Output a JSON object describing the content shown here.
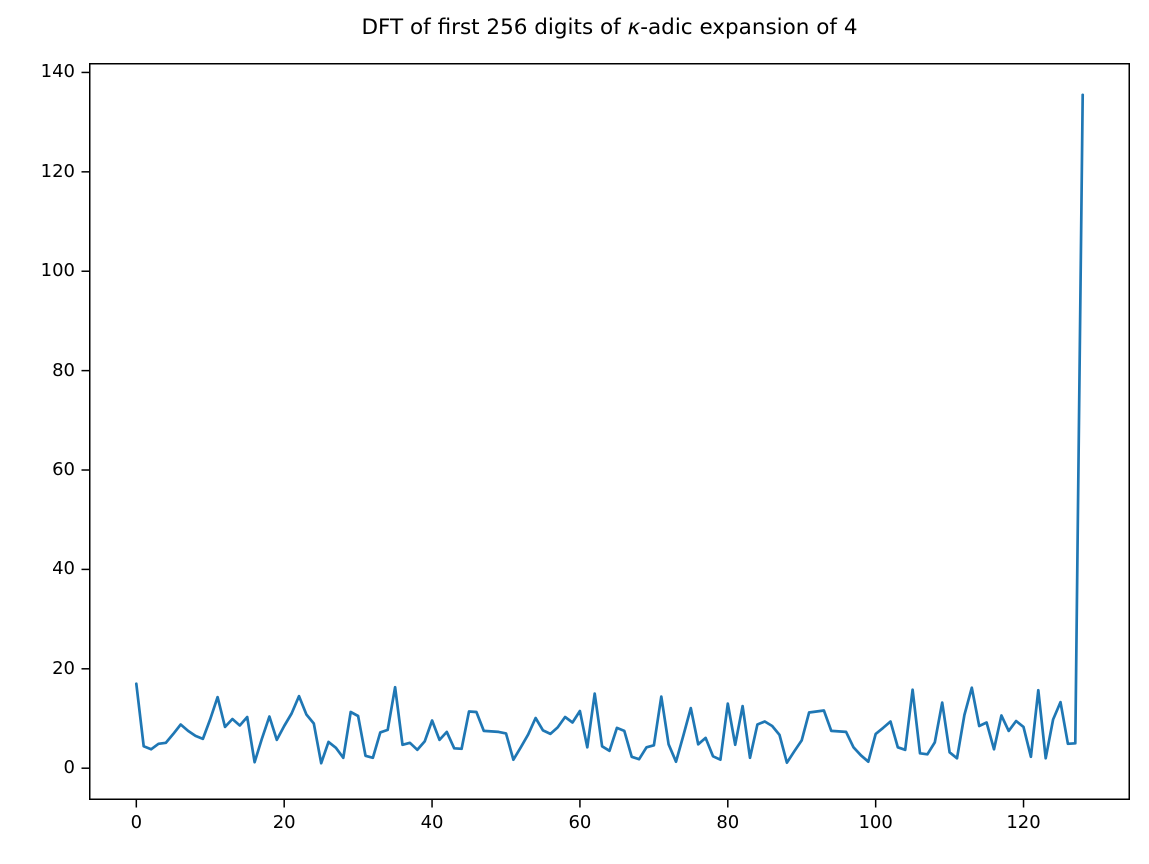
{
  "figure": {
    "title_parts": {
      "prefix": "DFT of first 256 digits of ",
      "kappa": "κ",
      "suffix": "-adic expansion of 4"
    }
  },
  "chart_data": {
    "type": "line",
    "title": "DFT of first 256 digits of κ-adic expansion of 4",
    "xlabel": "",
    "ylabel": "",
    "grid": false,
    "legend": "none",
    "line_color": "#1f77b4",
    "axis_color": "#000000",
    "background_color": "#ffffff",
    "xlim": [
      -6.4,
      134.4
    ],
    "ylim": [
      -6.4,
      141.9
    ],
    "x_ticks": [
      0,
      20,
      40,
      60,
      80,
      100,
      120
    ],
    "y_ticks": [
      0,
      20,
      40,
      60,
      80,
      100,
      120,
      140
    ],
    "x_start": 0,
    "x_step": 1,
    "y": [
      17.0,
      4.4,
      3.8,
      4.9,
      5.1,
      6.9,
      8.8,
      7.5,
      6.5,
      5.9,
      9.9,
      14.3,
      8.3,
      9.9,
      8.6,
      10.3,
      1.2,
      6.0,
      10.4,
      5.7,
      8.5,
      11.0,
      14.5,
      10.8,
      9.0,
      1.0,
      5.3,
      4.1,
      2.1,
      11.3,
      10.5,
      2.5,
      2.1,
      7.2,
      7.7,
      16.3,
      4.7,
      5.1,
      3.7,
      5.4,
      9.6,
      5.7,
      7.3,
      4.0,
      3.9,
      11.4,
      11.3,
      7.5,
      7.4,
      7.3,
      7.0,
      1.7,
      4.2,
      6.8,
      10.1,
      7.6,
      6.9,
      8.2,
      10.3,
      9.2,
      11.5,
      4.2,
      15.0,
      4.4,
      3.5,
      8.1,
      7.5,
      2.3,
      1.8,
      4.2,
      4.6,
      14.4,
      4.8,
      1.3,
      6.6,
      12.1,
      4.8,
      6.1,
      2.4,
      1.7,
      13.0,
      4.7,
      12.5,
      2.1,
      8.8,
      9.4,
      8.5,
      6.7,
      1.1,
      3.4,
      5.6,
      11.2,
      11.4,
      11.6,
      7.5,
      7.4,
      7.3,
      4.2,
      2.6,
      1.3,
      6.9,
      8.1,
      9.4,
      4.2,
      3.7,
      15.8,
      3.0,
      2.8,
      5.2,
      13.2,
      3.2,
      2.0,
      10.7,
      16.2,
      8.5,
      9.2,
      3.8,
      10.6,
      7.5,
      9.5,
      8.3,
      2.3,
      15.7,
      2.0,
      9.8,
      13.3,
      4.9,
      5.0,
      135.5
    ]
  }
}
